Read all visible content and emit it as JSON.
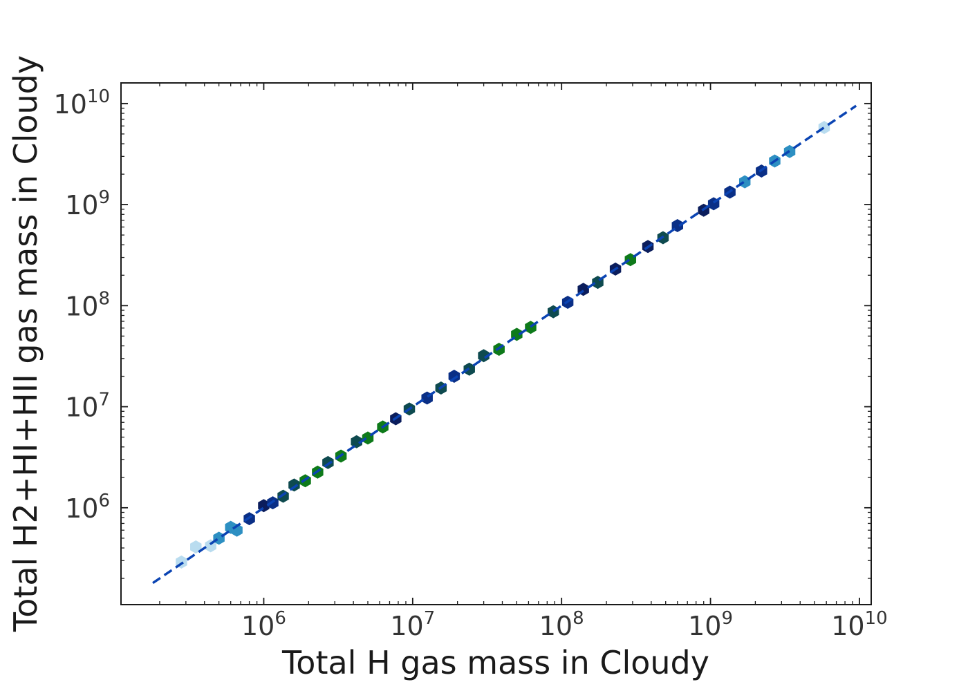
{
  "chart_data": {
    "type": "scatter",
    "subtype": "hexbin",
    "xlabel": "Total H gas mass in Cloudy",
    "ylabel": "Total H2+HI+HII gas mass in Cloudy",
    "xscale": "log",
    "yscale": "log",
    "xlim": [
      110000,
      12000000000
    ],
    "ylim": [
      110000,
      16000000000
    ],
    "grid": false,
    "legend": "none",
    "x_ticks": [
      {
        "value": 1000000,
        "base": "10",
        "exp": "6"
      },
      {
        "value": 10000000,
        "base": "10",
        "exp": "7"
      },
      {
        "value": 100000000,
        "base": "10",
        "exp": "8"
      },
      {
        "value": 1000000000,
        "base": "10",
        "exp": "9"
      },
      {
        "value": 10000000000,
        "base": "10",
        "exp": "10"
      }
    ],
    "y_ticks": [
      {
        "value": 1000000,
        "base": "10",
        "exp": "6"
      },
      {
        "value": 10000000,
        "base": "10",
        "exp": "7"
      },
      {
        "value": 100000000,
        "base": "10",
        "exp": "8"
      },
      {
        "value": 1000000000,
        "base": "10",
        "exp": "9"
      },
      {
        "value": 10000000000,
        "base": "10",
        "exp": "10"
      }
    ],
    "reference_line": {
      "style": "dashed",
      "color": "#0b44b3",
      "x": [
        180000,
        9500000000
      ],
      "y": [
        180000,
        9500000000
      ]
    },
    "colors": {
      "low": "#b9dcef",
      "mid_low": "#2d8fc2",
      "mid": "#0a2f86",
      "dense": "#0b1d5c",
      "teal": "#0e4a4f",
      "green": "#0e7a1a",
      "axis": "#1a1a1a"
    },
    "points": [
      {
        "x": 280000,
        "y": 290000,
        "density": "low"
      },
      {
        "x": 350000,
        "y": 410000,
        "density": "low"
      },
      {
        "x": 440000,
        "y": 420000,
        "density": "low"
      },
      {
        "x": 500000,
        "y": 500000,
        "density": "mid_low"
      },
      {
        "x": 600000,
        "y": 640000,
        "density": "mid_low"
      },
      {
        "x": 660000,
        "y": 600000,
        "density": "mid_low"
      },
      {
        "x": 800000,
        "y": 780000,
        "density": "mid"
      },
      {
        "x": 1000000,
        "y": 1050000,
        "density": "dense"
      },
      {
        "x": 1150000,
        "y": 1120000,
        "density": "mid"
      },
      {
        "x": 1350000,
        "y": 1300000,
        "density": "teal"
      },
      {
        "x": 1600000,
        "y": 1680000,
        "density": "teal"
      },
      {
        "x": 1900000,
        "y": 1850000,
        "density": "green"
      },
      {
        "x": 2300000,
        "y": 2250000,
        "density": "green"
      },
      {
        "x": 2700000,
        "y": 2800000,
        "density": "teal"
      },
      {
        "x": 3300000,
        "y": 3250000,
        "density": "green"
      },
      {
        "x": 4200000,
        "y": 4500000,
        "density": "teal"
      },
      {
        "x": 5000000,
        "y": 4900000,
        "density": "green"
      },
      {
        "x": 6300000,
        "y": 6300000,
        "density": "green"
      },
      {
        "x": 7700000,
        "y": 7600000,
        "density": "dense"
      },
      {
        "x": 9500000,
        "y": 9500000,
        "density": "teal"
      },
      {
        "x": 12500000,
        "y": 12200000,
        "density": "mid"
      },
      {
        "x": 15500000,
        "y": 15300000,
        "density": "teal"
      },
      {
        "x": 19000000,
        "y": 20000000,
        "density": "mid"
      },
      {
        "x": 24000000,
        "y": 23500000,
        "density": "teal"
      },
      {
        "x": 30000000,
        "y": 32000000,
        "density": "teal"
      },
      {
        "x": 38000000,
        "y": 37000000,
        "density": "green"
      },
      {
        "x": 50000000,
        "y": 52000000,
        "density": "green"
      },
      {
        "x": 62000000,
        "y": 61000000,
        "density": "green"
      },
      {
        "x": 88000000,
        "y": 87000000,
        "density": "teal"
      },
      {
        "x": 110000000,
        "y": 108000000,
        "density": "mid"
      },
      {
        "x": 140000000,
        "y": 145000000,
        "density": "dense"
      },
      {
        "x": 175000000,
        "y": 170000000,
        "density": "teal"
      },
      {
        "x": 230000000,
        "y": 230000000,
        "density": "dense"
      },
      {
        "x": 290000000,
        "y": 285000000,
        "density": "green"
      },
      {
        "x": 380000000,
        "y": 385000000,
        "density": "dense"
      },
      {
        "x": 480000000,
        "y": 470000000,
        "density": "teal"
      },
      {
        "x": 600000000,
        "y": 620000000,
        "density": "mid"
      },
      {
        "x": 900000000,
        "y": 880000000,
        "density": "dense"
      },
      {
        "x": 1050000000,
        "y": 1020000000,
        "density": "mid"
      },
      {
        "x": 1350000000,
        "y": 1330000000,
        "density": "mid"
      },
      {
        "x": 1700000000,
        "y": 1680000000,
        "density": "mid_low"
      },
      {
        "x": 2200000000,
        "y": 2150000000,
        "density": "mid"
      },
      {
        "x": 2700000000,
        "y": 2700000000,
        "density": "mid_low"
      },
      {
        "x": 3400000000,
        "y": 3350000000,
        "density": "mid_low"
      },
      {
        "x": 5800000000,
        "y": 5800000000,
        "density": "low"
      }
    ]
  }
}
